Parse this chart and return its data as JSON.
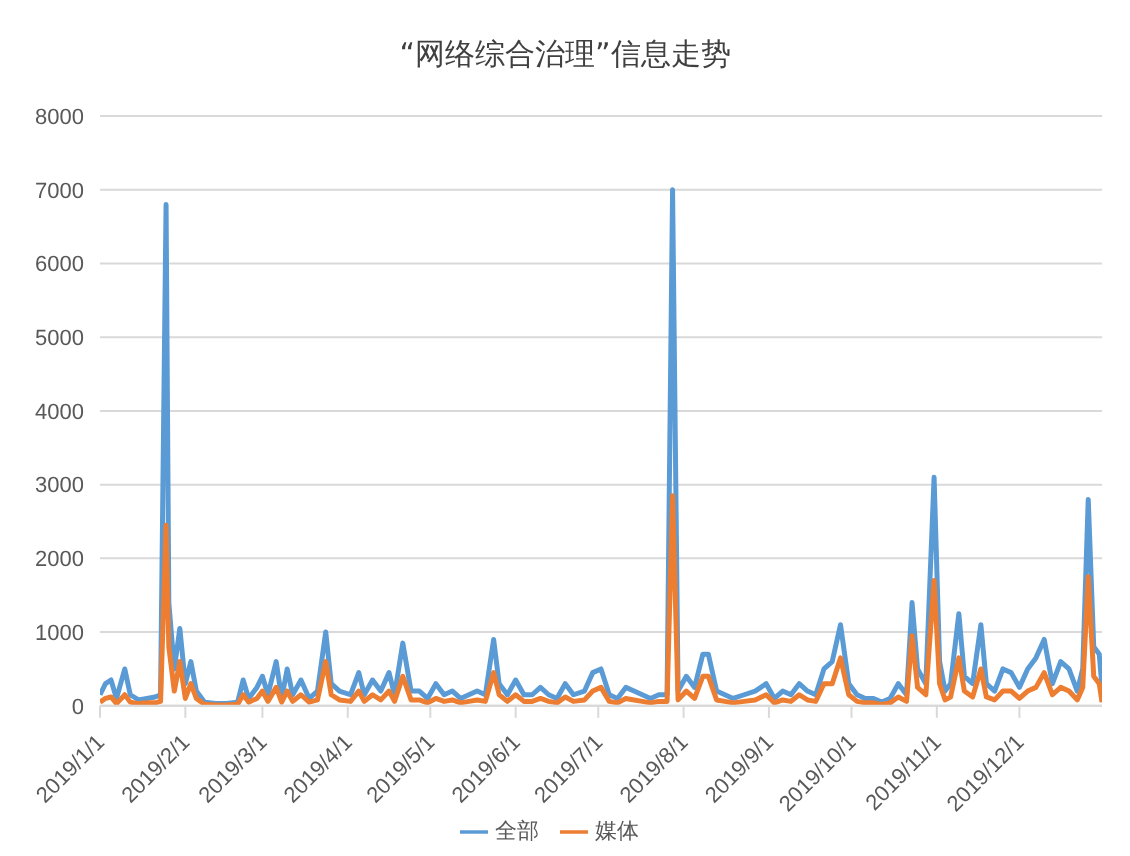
{
  "chart_data": {
    "type": "line",
    "title": "“网络综合治理”信息走势",
    "x": [
      "2019-01-01",
      "2019-01-03",
      "2019-01-05",
      "2019-01-07",
      "2019-01-10",
      "2019-01-12",
      "2019-01-15",
      "2019-01-18",
      "2019-01-21",
      "2019-01-23",
      "2019-01-25",
      "2019-01-26",
      "2019-01-28",
      "2019-01-30",
      "2019-02-01",
      "2019-02-03",
      "2019-02-05",
      "2019-02-08",
      "2019-02-12",
      "2019-02-16",
      "2019-02-20",
      "2019-02-22",
      "2019-02-24",
      "2019-02-27",
      "2019-03-01",
      "2019-03-03",
      "2019-03-06",
      "2019-03-08",
      "2019-03-10",
      "2019-03-12",
      "2019-03-15",
      "2019-03-18",
      "2019-03-21",
      "2019-03-24",
      "2019-03-26",
      "2019-03-29",
      "2019-04-02",
      "2019-04-05",
      "2019-04-07",
      "2019-04-10",
      "2019-04-13",
      "2019-04-16",
      "2019-04-18",
      "2019-04-21",
      "2019-04-24",
      "2019-04-27",
      "2019-04-30",
      "2019-05-03",
      "2019-05-06",
      "2019-05-09",
      "2019-05-12",
      "2019-05-15",
      "2019-05-18",
      "2019-05-21",
      "2019-05-24",
      "2019-05-26",
      "2019-05-29",
      "2019-06-01",
      "2019-06-04",
      "2019-06-07",
      "2019-06-10",
      "2019-06-13",
      "2019-06-16",
      "2019-06-19",
      "2019-06-22",
      "2019-06-26",
      "2019-06-29",
      "2019-07-02",
      "2019-07-05",
      "2019-07-08",
      "2019-07-11",
      "2019-07-14",
      "2019-07-17",
      "2019-07-20",
      "2019-07-23",
      "2019-07-26",
      "2019-07-28",
      "2019-07-30",
      "2019-08-02",
      "2019-08-05",
      "2019-08-08",
      "2019-08-10",
      "2019-08-13",
      "2019-08-16",
      "2019-08-19",
      "2019-08-23",
      "2019-08-27",
      "2019-08-31",
      "2019-09-03",
      "2019-09-06",
      "2019-09-09",
      "2019-09-12",
      "2019-09-15",
      "2019-09-18",
      "2019-09-21",
      "2019-09-24",
      "2019-09-27",
      "2019-09-30",
      "2019-10-03",
      "2019-10-06",
      "2019-10-09",
      "2019-10-12",
      "2019-10-15",
      "2019-10-18",
      "2019-10-21",
      "2019-10-23",
      "2019-10-25",
      "2019-10-28",
      "2019-10-31",
      "2019-11-02",
      "2019-11-04",
      "2019-11-06",
      "2019-11-09",
      "2019-11-11",
      "2019-11-14",
      "2019-11-17",
      "2019-11-19",
      "2019-11-22",
      "2019-11-25",
      "2019-11-28",
      "2019-12-01",
      "2019-12-04",
      "2019-12-07",
      "2019-12-10",
      "2019-12-13",
      "2019-12-16",
      "2019-12-19",
      "2019-12-22",
      "2019-12-24",
      "2019-12-26",
      "2019-12-28",
      "2019-12-30",
      "2019-12-31"
    ],
    "series": [
      {
        "name": "全部",
        "color": "#5b9bd5",
        "values": [
          150,
          300,
          350,
          100,
          500,
          150,
          80,
          100,
          120,
          150,
          6800,
          1400,
          500,
          1050,
          300,
          600,
          200,
          50,
          30,
          30,
          50,
          350,
          100,
          250,
          400,
          150,
          600,
          100,
          500,
          150,
          350,
          100,
          200,
          1000,
          300,
          200,
          150,
          450,
          150,
          350,
          200,
          450,
          150,
          850,
          200,
          200,
          100,
          300,
          150,
          200,
          100,
          150,
          200,
          150,
          900,
          300,
          150,
          350,
          150,
          150,
          250,
          150,
          100,
          300,
          150,
          200,
          450,
          500,
          150,
          100,
          250,
          200,
          150,
          100,
          150,
          150,
          7000,
          200,
          400,
          250,
          700,
          700,
          200,
          150,
          100,
          150,
          200,
          300,
          100,
          200,
          150,
          300,
          200,
          150,
          500,
          600,
          1100,
          300,
          150,
          100,
          100,
          50,
          100,
          300,
          150,
          1400,
          500,
          300,
          3100,
          600,
          200,
          300,
          1250,
          400,
          300,
          1100,
          300,
          200,
          500,
          450,
          250,
          500,
          650,
          900,
          300,
          600,
          500,
          200,
          500,
          2800,
          800,
          700,
          250
        ]
      },
      {
        "name": "媒体",
        "color": "#ed7d31",
        "values": [
          50,
          100,
          120,
          30,
          150,
          50,
          30,
          40,
          40,
          60,
          2450,
          800,
          200,
          600,
          100,
          300,
          100,
          20,
          10,
          10,
          20,
          150,
          50,
          100,
          200,
          60,
          250,
          50,
          200,
          60,
          150,
          50,
          80,
          600,
          150,
          80,
          60,
          200,
          60,
          150,
          80,
          200,
          60,
          400,
          80,
          80,
          40,
          100,
          60,
          80,
          40,
          60,
          80,
          60,
          450,
          150,
          60,
          150,
          60,
          60,
          100,
          60,
          40,
          120,
          60,
          80,
          200,
          250,
          60,
          40,
          100,
          80,
          60,
          40,
          60,
          60,
          2850,
          80,
          200,
          100,
          400,
          400,
          80,
          60,
          40,
          60,
          80,
          150,
          40,
          80,
          60,
          150,
          80,
          60,
          300,
          300,
          650,
          150,
          60,
          40,
          40,
          20,
          40,
          120,
          60,
          950,
          250,
          150,
          1700,
          300,
          80,
          120,
          650,
          200,
          120,
          500,
          120,
          80,
          200,
          200,
          100,
          200,
          250,
          450,
          150,
          250,
          200,
          80,
          250,
          1750,
          400,
          300,
          50
        ]
      }
    ],
    "xlim": [
      "2019-01-01",
      "2019-12-31"
    ],
    "xticks": [
      {
        "value": "2019-01-01",
        "label": "2019/1/1"
      },
      {
        "value": "2019-02-01",
        "label": "2019/2/1"
      },
      {
        "value": "2019-03-01",
        "label": "2019/3/1"
      },
      {
        "value": "2019-04-01",
        "label": "2019/4/1"
      },
      {
        "value": "2019-05-01",
        "label": "2019/5/1"
      },
      {
        "value": "2019-06-01",
        "label": "2019/6/1"
      },
      {
        "value": "2019-07-01",
        "label": "2019/7/1"
      },
      {
        "value": "2019-08-01",
        "label": "2019/8/1"
      },
      {
        "value": "2019-09-01",
        "label": "2019/9/1"
      },
      {
        "value": "2019-10-01",
        "label": "2019/10/1"
      },
      {
        "value": "2019-11-01",
        "label": "2019/11/1"
      },
      {
        "value": "2019-12-01",
        "label": "2019/12/1"
      }
    ],
    "ylim": [
      0,
      8000
    ],
    "yticks": [
      0,
      1000,
      2000,
      3000,
      4000,
      5000,
      6000,
      7000,
      8000
    ],
    "grid": "y",
    "legend": "bottom",
    "marker": "none",
    "line_style": "solid"
  }
}
